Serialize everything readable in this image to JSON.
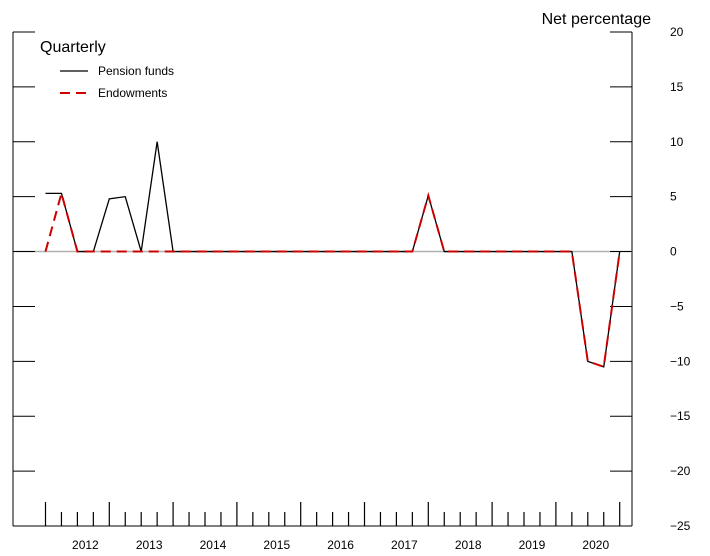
{
  "chart_data": {
    "type": "line",
    "subtitle": "Quarterly",
    "ylabel": "Net percentage",
    "ylim": [
      -25,
      20
    ],
    "yticks": [
      20,
      15,
      10,
      5,
      0,
      -5,
      -10,
      -15,
      -20,
      -25
    ],
    "ytick_labels": [
      "20",
      "15",
      "10",
      "5",
      "0",
      "−5",
      "−10",
      "−15",
      "−20",
      "−25"
    ],
    "year_labels": [
      "2012",
      "2013",
      "2014",
      "2015",
      "2016",
      "2017",
      "2018",
      "2019",
      "2020"
    ],
    "legend": {
      "placement": "top-left"
    },
    "zero_line_color": "#b0b0b0",
    "series": [
      {
        "name": "Pension funds",
        "color": "#000000",
        "dash": "solid",
        "x": [
          "2011Q4",
          "2012Q1",
          "2012Q2",
          "2012Q3",
          "2012Q4",
          "2013Q1",
          "2013Q2",
          "2013Q3",
          "2013Q4",
          "2014Q1",
          "2014Q2",
          "2014Q3",
          "2014Q4",
          "2015Q1",
          "2015Q2",
          "2015Q3",
          "2015Q4",
          "2016Q1",
          "2016Q2",
          "2016Q3",
          "2016Q4",
          "2017Q1",
          "2017Q2",
          "2017Q3",
          "2017Q4",
          "2018Q1",
          "2018Q2",
          "2018Q3",
          "2018Q4",
          "2019Q1",
          "2019Q2",
          "2019Q3",
          "2019Q4",
          "2020Q1",
          "2020Q2",
          "2020Q3",
          "2020Q4"
        ],
        "values": [
          5.3,
          5.3,
          0,
          0,
          4.8,
          5.0,
          0,
          10.0,
          0,
          0,
          0,
          0,
          0,
          0,
          0,
          0,
          0,
          0,
          0,
          0,
          0,
          0,
          0,
          0,
          5.1,
          0,
          0,
          0,
          0,
          0,
          0,
          0,
          0,
          0,
          -10.0,
          -10.5,
          0
        ]
      },
      {
        "name": "Endowments",
        "color": "#cc0000",
        "dash": "dashed",
        "x": [
          "2011Q4",
          "2012Q1",
          "2012Q2",
          "2012Q3",
          "2012Q4",
          "2013Q1",
          "2013Q2",
          "2013Q3",
          "2013Q4",
          "2014Q1",
          "2014Q2",
          "2014Q3",
          "2014Q4",
          "2015Q1",
          "2015Q2",
          "2015Q3",
          "2015Q4",
          "2016Q1",
          "2016Q2",
          "2016Q3",
          "2016Q4",
          "2017Q1",
          "2017Q2",
          "2017Q3",
          "2017Q4",
          "2018Q1",
          "2018Q2",
          "2018Q3",
          "2018Q4",
          "2019Q1",
          "2019Q2",
          "2019Q3",
          "2019Q4",
          "2020Q1",
          "2020Q2",
          "2020Q3",
          "2020Q4"
        ],
        "values": [
          0,
          5.3,
          0,
          0,
          0,
          0,
          0,
          0,
          0,
          0,
          0,
          0,
          0,
          0,
          0,
          0,
          0,
          0,
          0,
          0,
          0,
          0,
          0,
          0,
          5.1,
          0,
          0,
          0,
          0,
          0,
          0,
          0,
          0,
          0,
          -10.0,
          -10.5,
          0
        ]
      }
    ]
  }
}
